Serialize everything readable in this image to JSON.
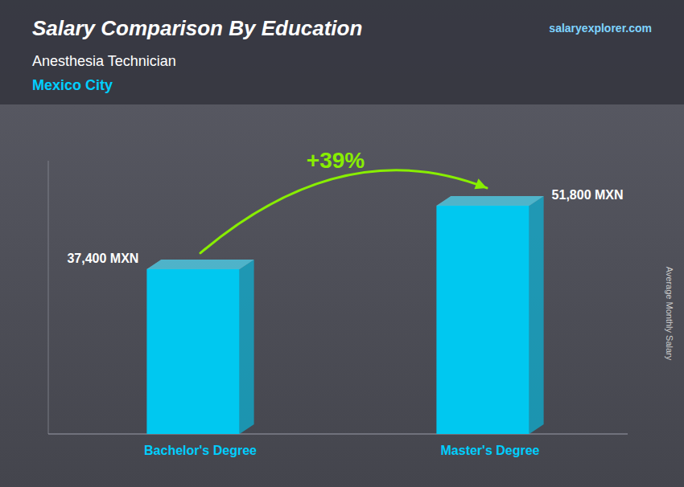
{
  "chart_data": {
    "type": "bar",
    "title": "Salary Comparison By Education",
    "subtitle": [
      "Anesthesia Technician",
      "Mexico City"
    ],
    "y_label": "Average Monthly Salary",
    "categories": [
      "Bachelor's Degree",
      "Master's Degree"
    ],
    "values": [
      37400,
      51800
    ],
    "value_labels": [
      "37,400 MXN",
      "51,800 MXN"
    ],
    "data_labels": true,
    "color": "#00c8f0",
    "ylim": [
      0,
      62000
    ],
    "tick_labels": false,
    "grid": false,
    "annotations": [
      "+39%",
      "salaryexplorer.com"
    ]
  }
}
